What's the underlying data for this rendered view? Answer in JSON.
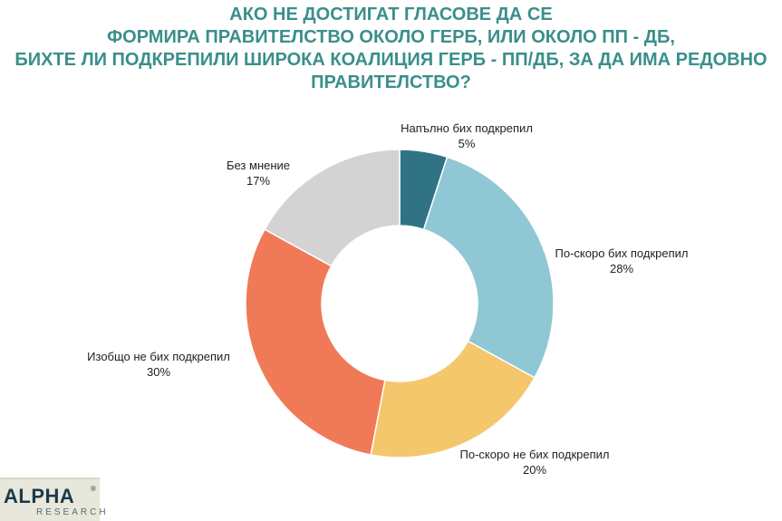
{
  "chart_data": {
    "type": "pie",
    "title_lines": [
      "АКО НЕ ДОСТИГАТ ГЛАСОВЕ ДА СЕ",
      "ФОРМИРА ПРАВИТЕЛСТВО ОКОЛО ГЕРБ, ИЛИ ОКОЛО ПП - ДБ,",
      "БИХТЕ ЛИ ПОДКРЕПИЛИ ШИРОКА КОАЛИЦИЯ ГЕРБ - ПП/ДБ, ЗА ДА ИМА РЕДОВНО",
      "ПРАВИТЕЛСТВО?"
    ],
    "donut": true,
    "slices": [
      {
        "label": "Напълно бих подкрепил",
        "value": 5,
        "value_label": "5%",
        "color": "#2f7384"
      },
      {
        "label": "По-скоро бих подкрепил",
        "value": 28,
        "value_label": "28%",
        "color": "#8fc8d4"
      },
      {
        "label": "По-скоро не бих подкрепил",
        "value": 20,
        "value_label": "20%",
        "color": "#f4c76c"
      },
      {
        "label": "Изобщо не бих подкрепил",
        "value": 30,
        "value_label": "30%",
        "color": "#f07a58"
      },
      {
        "label": "Без мнение",
        "value": 17,
        "value_label": "17%",
        "color": "#d3d3d3"
      }
    ]
  },
  "logo": {
    "brand": "ALPHA",
    "sub": "RESEARCH",
    "reg": "®"
  }
}
